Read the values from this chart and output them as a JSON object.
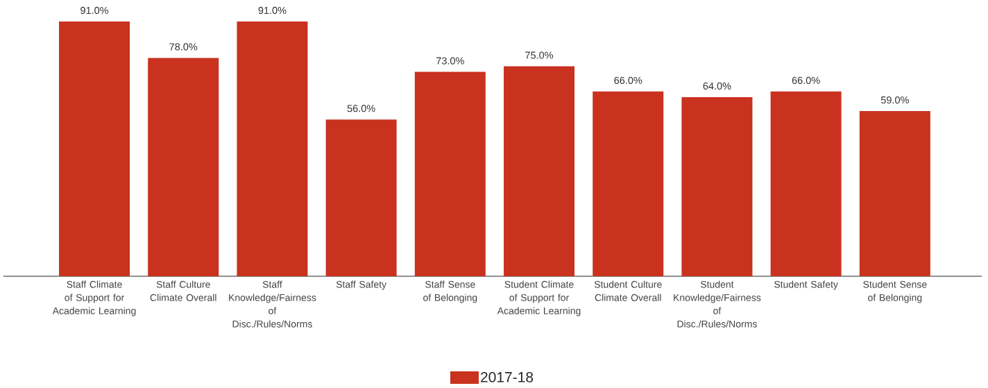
{
  "chart_data": {
    "type": "bar",
    "categories": [
      "Staff Climate of Support for Academic Learning",
      "Staff Culture Climate Overall",
      "Staff Knowledge/Fairness of Disc./Rules/Norms",
      "Staff Safety",
      "Staff Sense of Belonging",
      "Student Climate of Support for Academic Learning",
      "Student Culture Climate Overall",
      "Student Knowledge/Fairness of Disc./Rules/Norms",
      "Student Safety",
      "Student Sense of Belonging"
    ],
    "series": [
      {
        "name": "2017-18",
        "color": "#c8321e",
        "values": [
          91,
          78,
          91,
          56,
          73,
          75,
          66,
          64,
          66,
          59
        ],
        "value_labels": [
          "91.0%",
          "78.0%",
          "91.0%",
          "56.0%",
          "73.0%",
          "75.0%",
          "66.0%",
          "64.0%",
          "66.0%",
          "59.0%"
        ]
      }
    ],
    "legend": "bottom"
  }
}
